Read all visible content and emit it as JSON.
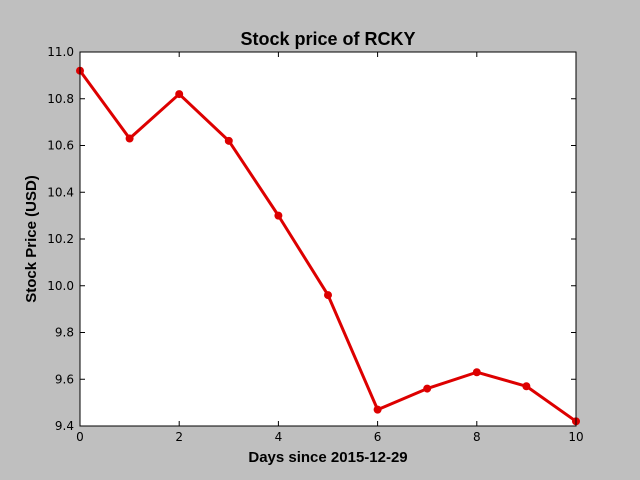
{
  "chart_data": {
    "type": "line",
    "title": "Stock price of RCKY",
    "xlabel": "Days since 2015-12-29",
    "ylabel": "Stock Price (USD)",
    "xlim": [
      0,
      10
    ],
    "ylim": [
      9.4,
      11.0
    ],
    "xticks": [
      "0",
      "2",
      "4",
      "6",
      "8",
      "10"
    ],
    "yticks": [
      "9.4",
      "9.6",
      "9.8",
      "10.0",
      "10.2",
      "10.4",
      "10.6",
      "10.8",
      "11.0"
    ],
    "grid": false,
    "series": [
      {
        "color": "#dd0000",
        "marker": "circle",
        "x": [
          0,
          1,
          2,
          3,
          4,
          5,
          6,
          7,
          8,
          9,
          10
        ],
        "y": [
          10.92,
          10.63,
          10.82,
          10.62,
          10.3,
          9.96,
          9.47,
          9.56,
          9.63,
          9.57,
          9.42
        ]
      }
    ]
  }
}
